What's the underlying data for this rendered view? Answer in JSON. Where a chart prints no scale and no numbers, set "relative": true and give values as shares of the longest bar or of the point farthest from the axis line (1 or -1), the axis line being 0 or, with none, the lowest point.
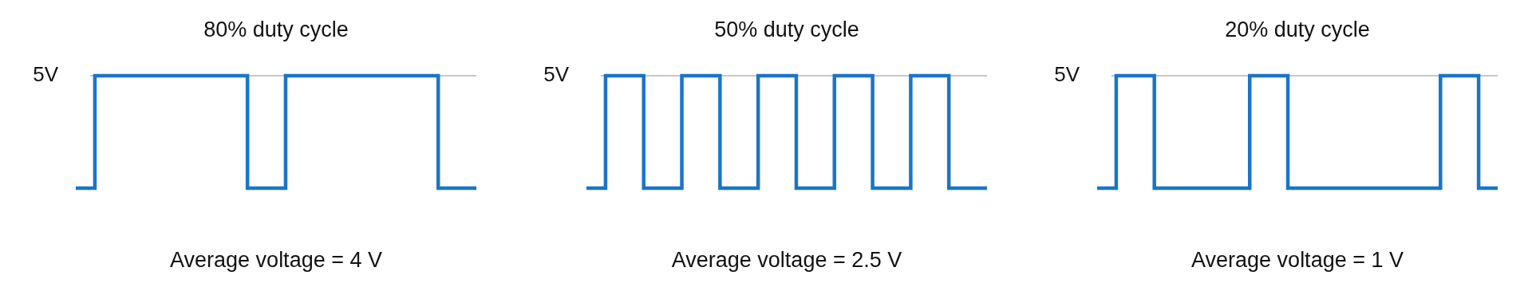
{
  "chart_data": [
    {
      "type": "step",
      "title": "80% duty cycle",
      "categories": [
        null,
        null,
        null,
        null,
        null,
        null,
        null,
        null,
        null,
        null,
        null,
        null,
        null,
        null,
        null,
        null,
        null,
        null,
        null,
        null,
        null,
        null
      ],
      "series": [
        {
          "color": "#1a75c9",
          "values": [
            0,
            1,
            1,
            1,
            1,
            1,
            1,
            1,
            1,
            0,
            0,
            1,
            1,
            1,
            1,
            1,
            1,
            1,
            1,
            0,
            0,
            0
          ]
        }
      ],
      "relative": true,
      "marker": "none",
      "ref_lines": [
        {
          "axis": "y",
          "value": 1,
          "label": "5V",
          "color": "#b4b4b4"
        }
      ],
      "annotations": [
        "Average voltage = 4 V"
      ]
    },
    {
      "type": "step",
      "title": "50% duty cycle",
      "categories": [
        null,
        null,
        null,
        null,
        null,
        null,
        null,
        null,
        null,
        null,
        null,
        null,
        null,
        null,
        null,
        null,
        null,
        null,
        null,
        null,
        null,
        null
      ],
      "series": [
        {
          "color": "#1a75c9",
          "values": [
            0,
            1,
            1,
            0,
            0,
            1,
            1,
            0,
            0,
            1,
            1,
            0,
            0,
            1,
            1,
            0,
            0,
            1,
            1,
            0,
            0,
            0
          ]
        }
      ],
      "relative": true,
      "marker": "none",
      "ref_lines": [
        {
          "axis": "y",
          "value": 1,
          "label": "5V",
          "color": "#b4b4b4"
        }
      ],
      "annotations": [
        "Average voltage = 2.5 V"
      ]
    },
    {
      "type": "step",
      "title": "20% duty cycle",
      "categories": [
        null,
        null,
        null,
        null,
        null,
        null,
        null,
        null,
        null,
        null,
        null,
        null,
        null,
        null,
        null,
        null,
        null,
        null,
        null,
        null,
        null,
        null
      ],
      "series": [
        {
          "color": "#1a75c9",
          "values": [
            0,
            1,
            1,
            0,
            0,
            0,
            0,
            0,
            1,
            1,
            0,
            0,
            0,
            0,
            0,
            0,
            0,
            0,
            1,
            1,
            0,
            0
          ]
        }
      ],
      "relative": true,
      "marker": "none",
      "ref_lines": [
        {
          "axis": "y",
          "value": 1,
          "label": "5V",
          "color": "#b4b4b4"
        }
      ],
      "annotations": [
        "Average voltage = 1 V"
      ]
    }
  ]
}
